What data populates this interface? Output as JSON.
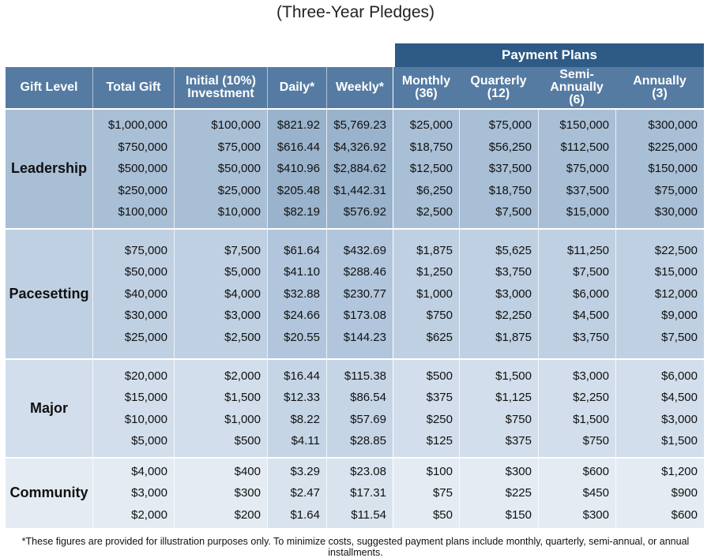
{
  "title": "(Three-Year Pledges)",
  "payment_plans_label": "Payment Plans",
  "headers": {
    "gift_level": "Gift Level",
    "total_gift": "Total Gift",
    "initial_line1": "Initial (10%)",
    "initial_line2": "Investment",
    "daily": "Daily*",
    "weekly": "Weekly*",
    "monthly_line1": "Monthly",
    "monthly_line2": "(36)",
    "quarterly_line1": "Quarterly",
    "quarterly_line2": "(12)",
    "semi_line1": "Semi-Annually",
    "semi_line2": "(6)",
    "annually_line1": "Annually",
    "annually_line2": "(3)"
  },
  "groups": [
    {
      "label": "Leadership",
      "total_gift": [
        "$1,000,000",
        "$750,000",
        "$500,000",
        "$250,000",
        "$100,000"
      ],
      "initial": [
        "$100,000",
        "$75,000",
        "$50,000",
        "$25,000",
        "$10,000"
      ],
      "daily": [
        "$821.92",
        "$616.44",
        "$410.96",
        "$205.48",
        "$82.19"
      ],
      "weekly": [
        "$5,769.23",
        "$4,326.92",
        "$2,884.62",
        "$1,442.31",
        "$576.92"
      ],
      "monthly": [
        "$25,000",
        "$18,750",
        "$12,500",
        "$6,250",
        "$2,500"
      ],
      "quarterly": [
        "$75,000",
        "$56,250",
        "$37,500",
        "$18,750",
        "$7,500"
      ],
      "semi_annually": [
        "$150,000",
        "$112,500",
        "$75,000",
        "$37,500",
        "$15,000"
      ],
      "annually": [
        "$300,000",
        "$225,000",
        "$150,000",
        "$75,000",
        "$30,000"
      ]
    },
    {
      "label": "Pacesetting",
      "total_gift": [
        "$75,000",
        "$50,000",
        "$40,000",
        "$30,000",
        "$25,000"
      ],
      "initial": [
        "$7,500",
        "$5,000",
        "$4,000",
        "$3,000",
        "$2,500"
      ],
      "daily": [
        "$61.64",
        "$41.10",
        "$32.88",
        "$24.66",
        "$20.55"
      ],
      "weekly": [
        "$432.69",
        "$288.46",
        "$230.77",
        "$173.08",
        "$144.23"
      ],
      "monthly": [
        "$1,875",
        "$1,250",
        "$1,000",
        "$750",
        "$625"
      ],
      "quarterly": [
        "$5,625",
        "$3,750",
        "$3,000",
        "$2,250",
        "$1,875"
      ],
      "semi_annually": [
        "$11,250",
        "$7,500",
        "$6,000",
        "$4,500",
        "$3,750"
      ],
      "annually": [
        "$22,500",
        "$15,000",
        "$12,000",
        "$9,000",
        "$7,500"
      ]
    },
    {
      "label": "Major",
      "total_gift": [
        "$20,000",
        "$15,000",
        "$10,000",
        "$5,000"
      ],
      "initial": [
        "$2,000",
        "$1,500",
        "$1,000",
        "$500"
      ],
      "daily": [
        "$16.44",
        "$12.33",
        "$8.22",
        "$4.11"
      ],
      "weekly": [
        "$115.38",
        "$86.54",
        "$57.69",
        "$28.85"
      ],
      "monthly": [
        "$500",
        "$375",
        "$250",
        "$125"
      ],
      "quarterly": [
        "$1,500",
        "$1,125",
        "$750",
        "$375"
      ],
      "semi_annually": [
        "$3,000",
        "$2,250",
        "$1,500",
        "$750"
      ],
      "annually": [
        "$6,000",
        "$4,500",
        "$3,000",
        "$1,500"
      ]
    },
    {
      "label": "Community",
      "total_gift": [
        "$4,000",
        "$3,000",
        "$2,000"
      ],
      "initial": [
        "$400",
        "$300",
        "$200"
      ],
      "daily": [
        "$3.29",
        "$2.47",
        "$1.64"
      ],
      "weekly": [
        "$23.08",
        "$17.31",
        "$11.54"
      ],
      "monthly": [
        "$100",
        "$75",
        "$50"
      ],
      "quarterly": [
        "$300",
        "$225",
        "$150"
      ],
      "semi_annually": [
        "$600",
        "$450",
        "$300"
      ],
      "annually": [
        "$1,200",
        "$900",
        "$600"
      ]
    }
  ],
  "footnote": "*These figures are provided for illustration purposes only. To minimize costs, suggested payment plans include monthly, quarterly, semi-annual, or annual installments."
}
